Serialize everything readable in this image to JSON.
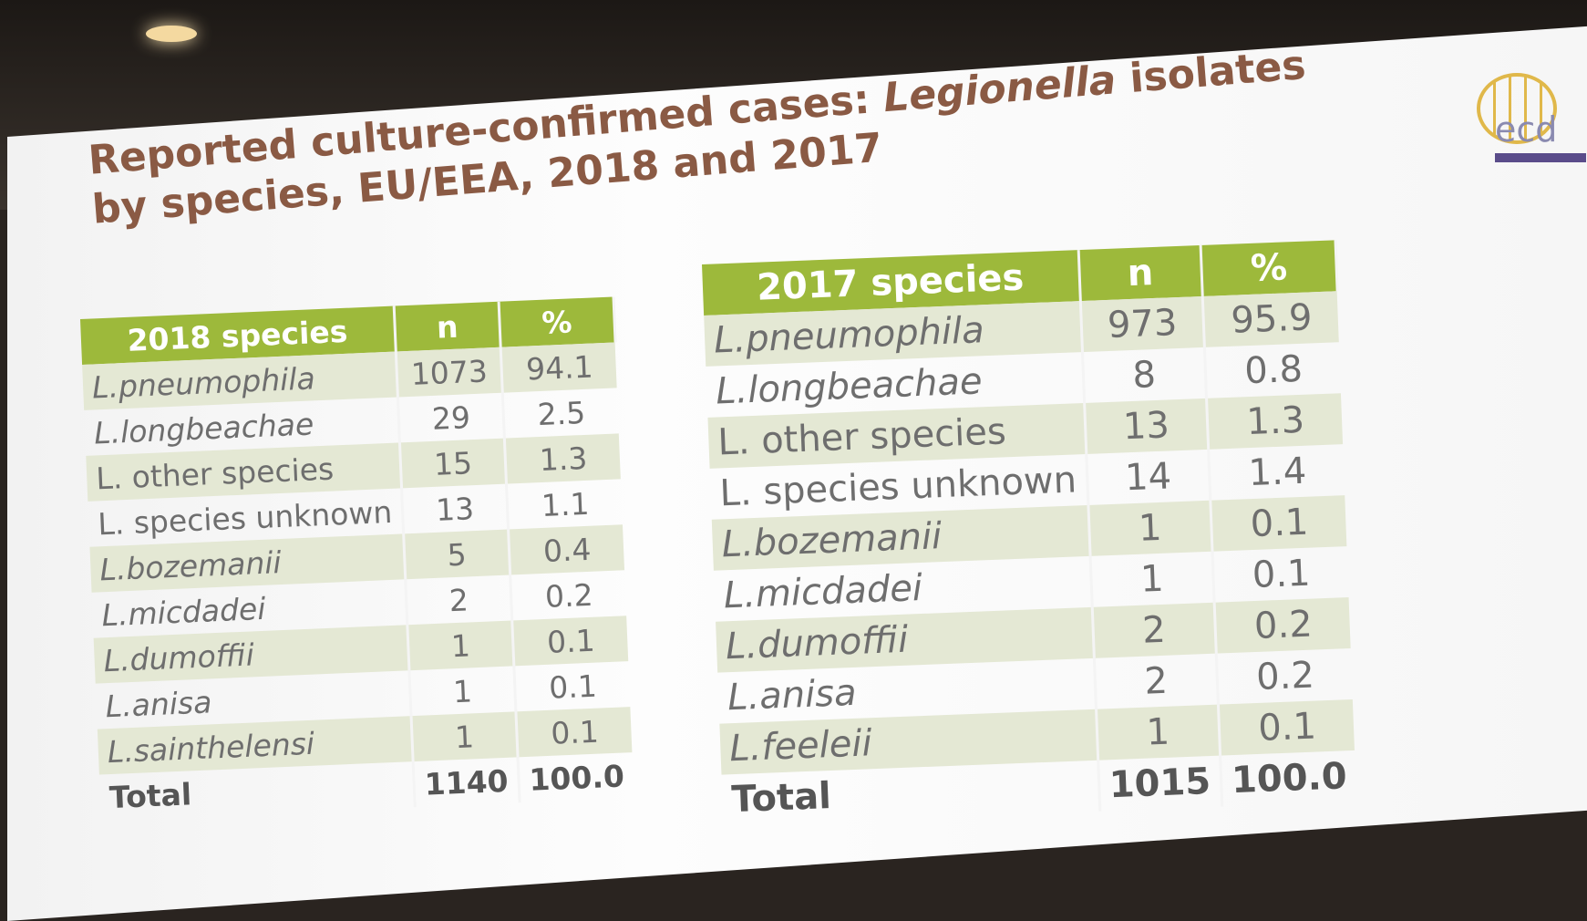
{
  "title": {
    "prefix": "Reported culture-confirmed cases: ",
    "italic": "Legionella",
    "suffix": " isolates",
    "line2": "by species, EU/EEA, 2018 and 2017"
  },
  "logo": {
    "text": "ecd"
  },
  "tables": [
    {
      "header": [
        "2018 species",
        "n",
        "%"
      ],
      "rows": [
        [
          "L.pneumophila",
          "1073",
          "94.1"
        ],
        [
          "L.longbeachae",
          "29",
          "2.5"
        ],
        [
          "L. other species",
          "15",
          "1.3"
        ],
        [
          "L. species unknown",
          "13",
          "1.1"
        ],
        [
          "L.bozemanii",
          "5",
          "0.4"
        ],
        [
          "L.micdadei",
          "2",
          "0.2"
        ],
        [
          "L.dumoffii",
          "1",
          "0.1"
        ],
        [
          "L.anisa",
          "1",
          "0.1"
        ],
        [
          "L.sainthelensi",
          "1",
          "0.1"
        ]
      ],
      "total": [
        "Total",
        "1140",
        "100.0"
      ]
    },
    {
      "header": [
        "2017 species",
        "n",
        "%"
      ],
      "rows": [
        [
          "L.pneumophila",
          "973",
          "95.9"
        ],
        [
          "L.longbeachae",
          "8",
          "0.8"
        ],
        [
          "L. other species",
          "13",
          "1.3"
        ],
        [
          "L. species unknown",
          "14",
          "1.4"
        ],
        [
          "L.bozemanii",
          "1",
          "0.1"
        ],
        [
          "L.micdadei",
          "1",
          "0.1"
        ],
        [
          "L.dumoffii",
          "2",
          "0.2"
        ],
        [
          "L.anisa",
          "2",
          "0.2"
        ],
        [
          "L.feeleii",
          "1",
          "0.1"
        ]
      ],
      "total": [
        "Total",
        "1015",
        "100.0"
      ]
    }
  ]
}
